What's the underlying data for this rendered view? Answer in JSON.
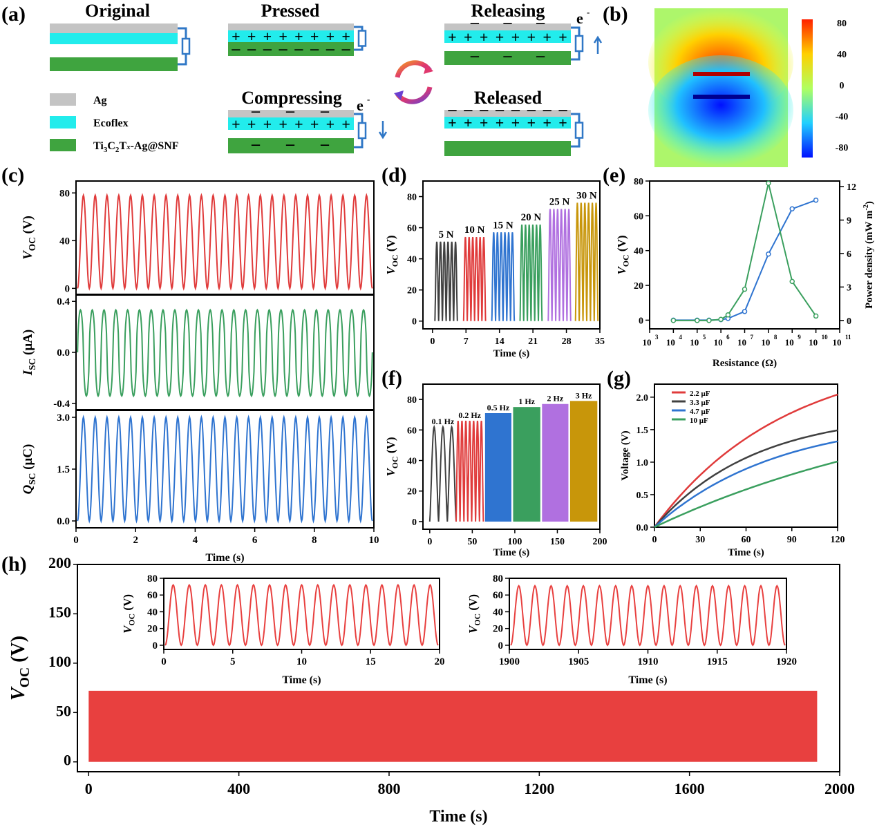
{
  "panels": {
    "a": "(a)",
    "b": "(b)",
    "c": "(c)",
    "d": "(d)",
    "e": "(e)",
    "f": "(f)",
    "g": "(g)",
    "h": "(h)"
  },
  "schematic": {
    "states": {
      "original": "Original",
      "pressed": "Pressed",
      "releasing": "Releasing",
      "compressing": "Compressing",
      "released": "Released"
    },
    "legend": [
      {
        "label": "Ag",
        "color": "#c4c4c4"
      },
      {
        "label": "Ecoflex",
        "color": "#22ecec"
      },
      {
        "label": "Ti3C2Tx-Ag@SNF",
        "color": "#3fa43f"
      }
    ],
    "electron": "e",
    "colors": {
      "wire": "#2f77c6",
      "ag": "#c4c4c4",
      "ecoflex": "#22ecec",
      "snf": "#3fa43f"
    }
  },
  "chart_data": [
    {
      "id": "b",
      "type": "heatmap",
      "title": "",
      "colorbar": {
        "ticks": [
          "80",
          "40",
          "0",
          "-40",
          "-80"
        ],
        "range": [
          -80,
          80
        ]
      }
    },
    {
      "id": "c",
      "type": "line",
      "xlabel": "Time (s)",
      "xlim": [
        0,
        10
      ],
      "xticks": [
        "0",
        "2",
        "4",
        "6",
        "8",
        "10"
      ],
      "series": [
        {
          "name": "VOC",
          "ylabel_main": "V",
          "ylabel_sub": "OC",
          "ylabel_unit": " (V)",
          "ylim": [
            -5,
            90
          ],
          "yticks": [
            "0",
            "40",
            "80"
          ],
          "ytickvals": [
            0,
            40,
            80
          ],
          "min": 0,
          "max": 78,
          "color": "#e03b3b",
          "cycles": 25
        },
        {
          "name": "ISC",
          "ylabel_main": "I",
          "ylabel_sub": "SC",
          "ylabel_unit": " (μA)",
          "ylim": [
            -0.45,
            0.45
          ],
          "yticks": [
            "-0.4",
            "0.0",
            "0.4"
          ],
          "ytickvals": [
            -0.4,
            0,
            0.4
          ],
          "min": -0.38,
          "max": 0.37,
          "color": "#3a9f5e",
          "cycles": 25
        },
        {
          "name": "QSC",
          "ylabel_main": "Q",
          "ylabel_sub": "SC",
          "ylabel_unit": " (μC)",
          "ylim": [
            -0.2,
            3.2
          ],
          "yticks": [
            "0.0",
            "1.5",
            "3.0"
          ],
          "ytickvals": [
            0,
            1.5,
            3
          ],
          "min": 0,
          "max": 3.0,
          "color": "#2f74d0",
          "cycles": 25
        }
      ]
    },
    {
      "id": "d",
      "type": "line",
      "xlabel": "Time (s)",
      "ylabel_main": "V",
      "ylabel_sub": "OC",
      "ylabel_unit": " (V)",
      "xlim": [
        -2,
        35
      ],
      "ylim": [
        -5,
        90
      ],
      "xticks": [
        "0",
        "7",
        "14",
        "21",
        "28",
        "35"
      ],
      "xtickvals": [
        0,
        7,
        14,
        21,
        28,
        35
      ],
      "yticks": [
        "0",
        "20",
        "40",
        "60",
        "80"
      ],
      "ytickvals": [
        0,
        20,
        40,
        60,
        80
      ],
      "series": [
        {
          "name": "5 N",
          "label": "5 N",
          "start": 0.5,
          "end": 5.2,
          "peak": 51,
          "color": "#404040"
        },
        {
          "name": "10 N",
          "label": "10 N",
          "start": 6.5,
          "end": 11.1,
          "peak": 54,
          "color": "#e03b3b"
        },
        {
          "name": "15 N",
          "label": "15 N",
          "start": 12.4,
          "end": 17.1,
          "peak": 57,
          "color": "#2f74d0"
        },
        {
          "name": "20 N",
          "label": "20 N",
          "start": 18.3,
          "end": 22.9,
          "peak": 62,
          "color": "#3a9f5e"
        },
        {
          "name": "25 N",
          "label": "25 N",
          "start": 24.2,
          "end": 28.9,
          "peak": 72,
          "color": "#b070e0"
        },
        {
          "name": "30 N",
          "label": "30 N",
          "start": 29.9,
          "end": 34.6,
          "peak": 76,
          "color": "#c8960a"
        }
      ]
    },
    {
      "id": "e",
      "type": "line",
      "xlabel": "Resistance (Ω)",
      "ylabel_main": "V",
      "ylabel_sub": "OC",
      "ylabel_unit": " (V)",
      "y2label": "Power density (mW m",
      "y2label_sup": "-2",
      "y2label_end": ")",
      "xlim": [
        3,
        11
      ],
      "xticks": [
        "3",
        "4",
        "5",
        "6",
        "7",
        "8",
        "9",
        "10",
        "11"
      ],
      "xtickvals": [
        3,
        4,
        5,
        6,
        7,
        8,
        9,
        10,
        11
      ],
      "ylim": [
        -5,
        80
      ],
      "yticks": [
        "0",
        "20",
        "40",
        "60",
        "80"
      ],
      "ytickvals": [
        0,
        20,
        40,
        60,
        80
      ],
      "y2lim": [
        -0.75,
        12.5
      ],
      "y2ticks": [
        "0",
        "3",
        "6",
        "9",
        "12"
      ],
      "y2tickvals": [
        0,
        3,
        6,
        9,
        12
      ],
      "x": [
        4,
        5,
        5.5,
        6,
        6.3,
        7,
        8,
        9,
        10
      ],
      "series": [
        {
          "name": "VOC",
          "axis": "left",
          "values": [
            0,
            0,
            0,
            0.3,
            1,
            5,
            38,
            64,
            69
          ],
          "color": "#2f74d0"
        },
        {
          "name": "Power density",
          "axis": "right",
          "values": [
            0,
            0,
            0,
            0.1,
            0.5,
            2.8,
            12.3,
            3.5,
            0.4
          ],
          "color": "#3a9f5e"
        }
      ]
    },
    {
      "id": "f",
      "type": "line",
      "xlabel": "Time (s)",
      "ylabel_main": "V",
      "ylabel_sub": "OC",
      "ylabel_unit": " (V)",
      "xlim": [
        -8,
        200
      ],
      "ylim": [
        -5,
        90
      ],
      "xticks": [
        "0",
        "50",
        "100",
        "150",
        "200"
      ],
      "xtickvals": [
        0,
        50,
        100,
        150,
        200
      ],
      "yticks": [
        "0",
        "20",
        "40",
        "60",
        "80"
      ],
      "ytickvals": [
        0,
        20,
        40,
        60,
        80
      ],
      "series": [
        {
          "name": "0.1 Hz",
          "label": "0.1 Hz",
          "start": 0,
          "end": 31,
          "peak": 62,
          "color": "#404040",
          "n": 3
        },
        {
          "name": "0.2 Hz",
          "label": "0.2 Hz",
          "start": 31,
          "end": 63,
          "peak": 66,
          "color": "#e03b3b",
          "n": 7
        },
        {
          "name": "0.5 Hz",
          "label": "0.5 Hz",
          "start": 65,
          "end": 96,
          "peak": 71,
          "color": "#2f74d0",
          "n": 0
        },
        {
          "name": "1 Hz",
          "label": "1 Hz",
          "start": 98,
          "end": 130,
          "peak": 75,
          "color": "#3a9f5e",
          "n": 0
        },
        {
          "name": "2 Hz",
          "label": "2 Hz",
          "start": 132,
          "end": 163,
          "peak": 77,
          "color": "#b070e0",
          "n": 0
        },
        {
          "name": "3 Hz",
          "label": "3 Hz",
          "start": 165,
          "end": 197,
          "peak": 79,
          "color": "#c8960a",
          "n": 0
        }
      ]
    },
    {
      "id": "g",
      "type": "line",
      "xlabel": "Time (s)",
      "ylabel": "Voltage (V)",
      "xlim": [
        0,
        120
      ],
      "ylim": [
        0,
        2.2
      ],
      "xticks": [
        "0",
        "30",
        "60",
        "90",
        "120"
      ],
      "xtickvals": [
        0,
        30,
        60,
        90,
        120
      ],
      "yticks": [
        "0.0",
        "0.5",
        "1.0",
        "1.5",
        "2.0"
      ],
      "ytickvals": [
        0,
        0.5,
        1,
        1.5,
        2
      ],
      "series": [
        {
          "name": "2.2 μF",
          "final": 2.04,
          "color": "#e03b3b",
          "tau": 85
        },
        {
          "name": "3.3 μF",
          "final": 1.49,
          "color": "#404040",
          "tau": 65
        },
        {
          "name": "4.7 μF",
          "final": 1.32,
          "color": "#2f74d0",
          "tau": 80
        },
        {
          "name": "10 μF",
          "final": 1.01,
          "color": "#3a9f5e",
          "tau": 200
        }
      ]
    },
    {
      "id": "h",
      "type": "line",
      "xlabel": "Time (s)",
      "ylabel_main": "V",
      "ylabel_sub": "OC",
      "ylabel_unit": " (V)",
      "xlim": [
        -30,
        2000
      ],
      "ylim": [
        -10,
        200
      ],
      "xticks": [
        "0",
        "400",
        "800",
        "1200",
        "1600",
        "2000"
      ],
      "xtickvals": [
        0,
        400,
        800,
        1200,
        1600,
        2000
      ],
      "yticks": [
        "0",
        "50",
        "100",
        "150",
        "200"
      ],
      "ytickvals": [
        0,
        50,
        100,
        150,
        200
      ],
      "band": {
        "x0": 0,
        "x1": 1940,
        "min": 0,
        "max": 72
      },
      "color": "#e8403f",
      "insets": [
        {
          "xlim": [
            0,
            20
          ],
          "xticks": [
            "0",
            "5",
            "10",
            "15",
            "20"
          ],
          "xtickvals": [
            0,
            5,
            10,
            15,
            20
          ],
          "ylim": [
            -5,
            80
          ],
          "yticks": [
            "0",
            "20",
            "40",
            "60",
            "80"
          ],
          "ytickvals": [
            0,
            20,
            40,
            60,
            80
          ],
          "xlabel": "Time (s)",
          "cycles": 17,
          "peak": 72
        },
        {
          "xlim": [
            1900,
            1920
          ],
          "xticks": [
            "1900",
            "1905",
            "1910",
            "1915",
            "1920"
          ],
          "xtickvals": [
            1900,
            1905,
            1910,
            1915,
            1920
          ],
          "ylim": [
            -5,
            80
          ],
          "yticks": [
            "0",
            "20",
            "40",
            "60",
            "80"
          ],
          "ytickvals": [
            0,
            20,
            40,
            60,
            80
          ],
          "xlabel": "Time (s)",
          "cycles": 17,
          "peak": 71
        }
      ]
    }
  ]
}
